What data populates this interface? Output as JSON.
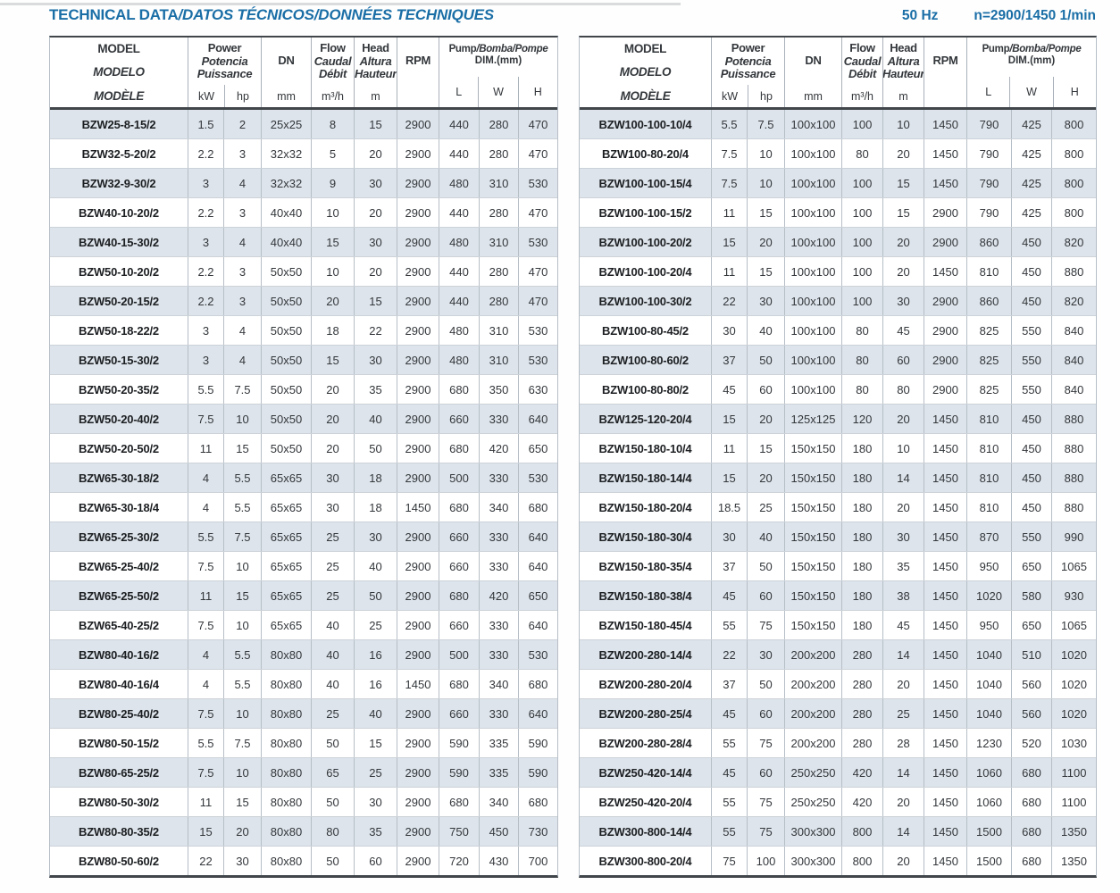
{
  "page": {
    "title_main": "TECHNICAL DATA",
    "title_italic": "/DATOS TÉCNICOS/DONNÉES TECHNIQUES",
    "frequency": "50 Hz",
    "rotation_speed": "n=2900/1450 1/min"
  },
  "colors": {
    "accent": "#1a6ea6",
    "row_stripe": "#dde4eb",
    "grid_line": "#b6bec6",
    "row_line": "#ccd2d8",
    "heavy_rule": "#41464a",
    "text": "#33373b"
  },
  "header": {
    "model_lines": [
      "MODEL",
      "MODELO",
      "MODÈLE"
    ],
    "power_lines": [
      "Power",
      "Potencia",
      "Puissance"
    ],
    "power_units": [
      "kW",
      "hp"
    ],
    "dn_label": "DN",
    "dn_unit": "mm",
    "flow_lines": [
      "Flow",
      "Caudal",
      "Débit"
    ],
    "flow_unit": "m³/h",
    "head_lines": [
      "Head",
      "Altura",
      "Hauteur"
    ],
    "head_unit": "m",
    "rpm_label": "RPM",
    "dim_title_main": "Pump",
    "dim_title_italic": "/Bomba/Pompe",
    "dim_subtitle": "DIM.(mm)",
    "dim_units": [
      "L",
      "W",
      "H"
    ]
  },
  "columns": [
    "model",
    "power_kw",
    "power_hp",
    "dn_mm",
    "flow_m3h",
    "head_m",
    "rpm",
    "dim_L",
    "dim_W",
    "dim_H"
  ],
  "tables": {
    "left_rows": [
      [
        "BZW25-8-15/2",
        "1.5",
        "2",
        "25x25",
        "8",
        "15",
        "2900",
        "440",
        "280",
        "470"
      ],
      [
        "BZW32-5-20/2",
        "2.2",
        "3",
        "32x32",
        "5",
        "20",
        "2900",
        "440",
        "280",
        "470"
      ],
      [
        "BZW32-9-30/2",
        "3",
        "4",
        "32x32",
        "9",
        "30",
        "2900",
        "480",
        "310",
        "530"
      ],
      [
        "BZW40-10-20/2",
        "2.2",
        "3",
        "40x40",
        "10",
        "20",
        "2900",
        "440",
        "280",
        "470"
      ],
      [
        "BZW40-15-30/2",
        "3",
        "4",
        "40x40",
        "15",
        "30",
        "2900",
        "480",
        "310",
        "530"
      ],
      [
        "BZW50-10-20/2",
        "2.2",
        "3",
        "50x50",
        "10",
        "20",
        "2900",
        "440",
        "280",
        "470"
      ],
      [
        "BZW50-20-15/2",
        "2.2",
        "3",
        "50x50",
        "20",
        "15",
        "2900",
        "440",
        "280",
        "470"
      ],
      [
        "BZW50-18-22/2",
        "3",
        "4",
        "50x50",
        "18",
        "22",
        "2900",
        "480",
        "310",
        "530"
      ],
      [
        "BZW50-15-30/2",
        "3",
        "4",
        "50x50",
        "15",
        "30",
        "2900",
        "480",
        "310",
        "530"
      ],
      [
        "BZW50-20-35/2",
        "5.5",
        "7.5",
        "50x50",
        "20",
        "35",
        "2900",
        "680",
        "350",
        "630"
      ],
      [
        "BZW50-20-40/2",
        "7.5",
        "10",
        "50x50",
        "20",
        "40",
        "2900",
        "660",
        "330",
        "640"
      ],
      [
        "BZW50-20-50/2",
        "11",
        "15",
        "50x50",
        "20",
        "50",
        "2900",
        "680",
        "420",
        "650"
      ],
      [
        "BZW65-30-18/2",
        "4",
        "5.5",
        "65x65",
        "30",
        "18",
        "2900",
        "500",
        "330",
        "530"
      ],
      [
        "BZW65-30-18/4",
        "4",
        "5.5",
        "65x65",
        "30",
        "18",
        "1450",
        "680",
        "340",
        "680"
      ],
      [
        "BZW65-25-30/2",
        "5.5",
        "7.5",
        "65x65",
        "25",
        "30",
        "2900",
        "660",
        "330",
        "640"
      ],
      [
        "BZW65-25-40/2",
        "7.5",
        "10",
        "65x65",
        "25",
        "40",
        "2900",
        "660",
        "330",
        "640"
      ],
      [
        "BZW65-25-50/2",
        "11",
        "15",
        "65x65",
        "25",
        "50",
        "2900",
        "680",
        "420",
        "650"
      ],
      [
        "BZW65-40-25/2",
        "7.5",
        "10",
        "65x65",
        "40",
        "25",
        "2900",
        "660",
        "330",
        "640"
      ],
      [
        "BZW80-40-16/2",
        "4",
        "5.5",
        "80x80",
        "40",
        "16",
        "2900",
        "500",
        "330",
        "530"
      ],
      [
        "BZW80-40-16/4",
        "4",
        "5.5",
        "80x80",
        "40",
        "16",
        "1450",
        "680",
        "340",
        "680"
      ],
      [
        "BZW80-25-40/2",
        "7.5",
        "10",
        "80x80",
        "25",
        "40",
        "2900",
        "660",
        "330",
        "640"
      ],
      [
        "BZW80-50-15/2",
        "5.5",
        "7.5",
        "80x80",
        "50",
        "15",
        "2900",
        "590",
        "335",
        "590"
      ],
      [
        "BZW80-65-25/2",
        "7.5",
        "10",
        "80x80",
        "65",
        "25",
        "2900",
        "590",
        "335",
        "590"
      ],
      [
        "BZW80-50-30/2",
        "11",
        "15",
        "80x80",
        "50",
        "30",
        "2900",
        "680",
        "340",
        "680"
      ],
      [
        "BZW80-80-35/2",
        "15",
        "20",
        "80x80",
        "80",
        "35",
        "2900",
        "750",
        "450",
        "730"
      ],
      [
        "BZW80-50-60/2",
        "22",
        "30",
        "80x80",
        "50",
        "60",
        "2900",
        "720",
        "430",
        "700"
      ]
    ],
    "right_rows": [
      [
        "BZW100-100-10/4",
        "5.5",
        "7.5",
        "100x100",
        "100",
        "10",
        "1450",
        "790",
        "425",
        "800"
      ],
      [
        "BZW100-80-20/4",
        "7.5",
        "10",
        "100x100",
        "80",
        "20",
        "1450",
        "790",
        "425",
        "800"
      ],
      [
        "BZW100-100-15/4",
        "7.5",
        "10",
        "100x100",
        "100",
        "15",
        "1450",
        "790",
        "425",
        "800"
      ],
      [
        "BZW100-100-15/2",
        "11",
        "15",
        "100x100",
        "100",
        "15",
        "2900",
        "790",
        "425",
        "800"
      ],
      [
        "BZW100-100-20/2",
        "15",
        "20",
        "100x100",
        "100",
        "20",
        "2900",
        "860",
        "450",
        "820"
      ],
      [
        "BZW100-100-20/4",
        "11",
        "15",
        "100x100",
        "100",
        "20",
        "1450",
        "810",
        "450",
        "880"
      ],
      [
        "BZW100-100-30/2",
        "22",
        "30",
        "100x100",
        "100",
        "30",
        "2900",
        "860",
        "450",
        "820"
      ],
      [
        "BZW100-80-45/2",
        "30",
        "40",
        "100x100",
        "80",
        "45",
        "2900",
        "825",
        "550",
        "840"
      ],
      [
        "BZW100-80-60/2",
        "37",
        "50",
        "100x100",
        "80",
        "60",
        "2900",
        "825",
        "550",
        "840"
      ],
      [
        "BZW100-80-80/2",
        "45",
        "60",
        "100x100",
        "80",
        "80",
        "2900",
        "825",
        "550",
        "840"
      ],
      [
        "BZW125-120-20/4",
        "15",
        "20",
        "125x125",
        "120",
        "20",
        "1450",
        "810",
        "450",
        "880"
      ],
      [
        "BZW150-180-10/4",
        "11",
        "15",
        "150x150",
        "180",
        "10",
        "1450",
        "810",
        "450",
        "880"
      ],
      [
        "BZW150-180-14/4",
        "15",
        "20",
        "150x150",
        "180",
        "14",
        "1450",
        "810",
        "450",
        "880"
      ],
      [
        "BZW150-180-20/4",
        "18.5",
        "25",
        "150x150",
        "180",
        "20",
        "1450",
        "810",
        "450",
        "880"
      ],
      [
        "BZW150-180-30/4",
        "30",
        "40",
        "150x150",
        "180",
        "30",
        "1450",
        "870",
        "550",
        "990"
      ],
      [
        "BZW150-180-35/4",
        "37",
        "50",
        "150x150",
        "180",
        "35",
        "1450",
        "950",
        "650",
        "1065"
      ],
      [
        "BZW150-180-38/4",
        "45",
        "60",
        "150x150",
        "180",
        "38",
        "1450",
        "1020",
        "580",
        "930"
      ],
      [
        "BZW150-180-45/4",
        "55",
        "75",
        "150x150",
        "180",
        "45",
        "1450",
        "950",
        "650",
        "1065"
      ],
      [
        "BZW200-280-14/4",
        "22",
        "30",
        "200x200",
        "280",
        "14",
        "1450",
        "1040",
        "510",
        "1020"
      ],
      [
        "BZW200-280-20/4",
        "37",
        "50",
        "200x200",
        "280",
        "20",
        "1450",
        "1040",
        "560",
        "1020"
      ],
      [
        "BZW200-280-25/4",
        "45",
        "60",
        "200x200",
        "280",
        "25",
        "1450",
        "1040",
        "560",
        "1020"
      ],
      [
        "BZW200-280-28/4",
        "55",
        "75",
        "200x200",
        "280",
        "28",
        "1450",
        "1230",
        "520",
        "1030"
      ],
      [
        "BZW250-420-14/4",
        "45",
        "60",
        "250x250",
        "420",
        "14",
        "1450",
        "1060",
        "680",
        "1100"
      ],
      [
        "BZW250-420-20/4",
        "55",
        "75",
        "250x250",
        "420",
        "20",
        "1450",
        "1060",
        "680",
        "1100"
      ],
      [
        "BZW300-800-14/4",
        "55",
        "75",
        "300x300",
        "800",
        "14",
        "1450",
        "1500",
        "680",
        "1350"
      ],
      [
        "BZW300-800-20/4",
        "75",
        "100",
        "300x300",
        "800",
        "20",
        "1450",
        "1500",
        "680",
        "1350"
      ]
    ]
  }
}
